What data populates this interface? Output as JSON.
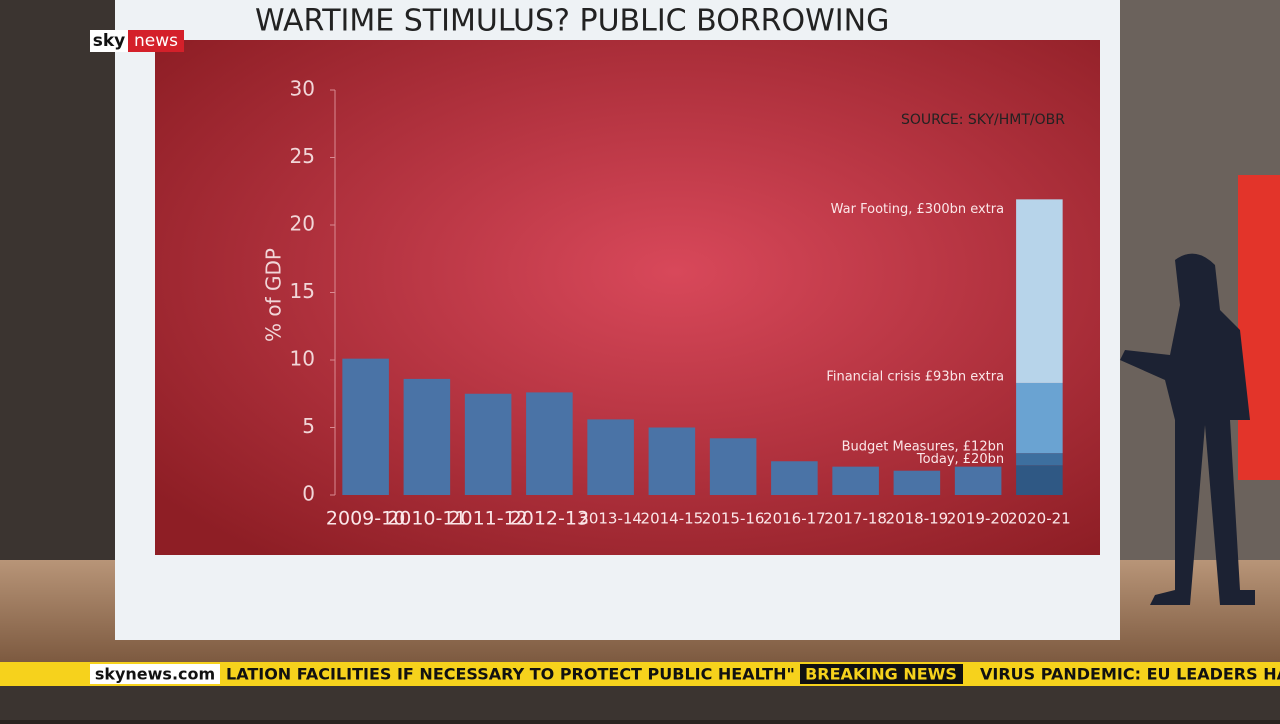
{
  "broadcast": {
    "logo_sky": "sky",
    "logo_news": "news",
    "site": "skynews.com",
    "ticker": [
      "LATION FACILITIES IF NECESSARY TO PROTECT PUBLIC HEALTH\"",
      "BREAKING NEWS",
      "VIRUS PANDEMIC: EU LEADERS HA"
    ]
  },
  "chart_data": {
    "type": "bar",
    "title": "WARTIME STIMULUS? PUBLIC BORROWING",
    "source": "SOURCE: SKY/HMT/OBR",
    "y_label": "% of GDP",
    "categories": [
      "2009-10",
      "2010-11",
      "2011-12",
      "2012-13",
      "2013-14",
      "2014-15",
      "2015-16",
      "2016-17",
      "2017-18",
      "2018-19",
      "2019-20",
      "2020-21"
    ],
    "values": [
      10.1,
      8.6,
      7.5,
      7.6,
      5.6,
      5.0,
      4.2,
      2.5,
      2.1,
      1.8,
      2.1,
      null
    ],
    "color": "#4a73a6",
    "stack": [
      {
        "name": "Today, £20bn",
        "value": 2.2,
        "color": "#2f5884"
      },
      {
        "name": "Budget Measures, £12bn",
        "value": 0.9,
        "color": "#3d6f9f"
      },
      {
        "name": "Financial crisis £93bn extra",
        "value": 5.2,
        "color": "#6aa3d2"
      },
      {
        "name": "War Footing, £300bn extra",
        "value": 13.6,
        "color": "#b7d4ea"
      }
    ],
    "ylim": [
      0,
      30
    ],
    "yticks": [
      0,
      5,
      10,
      15,
      20,
      25,
      30
    ],
    "grid": false
  }
}
